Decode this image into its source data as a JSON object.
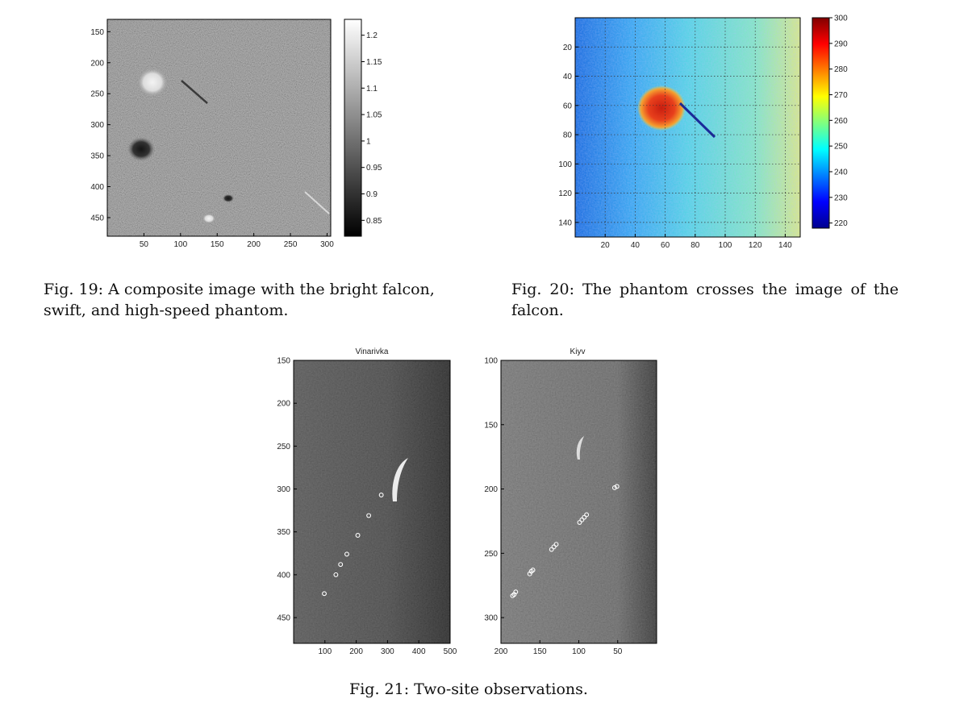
{
  "figures": [
    {
      "number": "19",
      "caption_prefix": "Fig. 19:",
      "caption_text": "A composite image with the bright falcon, swift, and high-speed phantom.",
      "image": {
        "title": "",
        "x_ticks": [
          "50",
          "100",
          "150",
          "200",
          "250",
          "300"
        ],
        "y_ticks": [
          "150",
          "200",
          "250",
          "300",
          "350",
          "400",
          "450"
        ],
        "colorbar_ticks": [
          "1.2",
          "1.15",
          "1.1",
          "1.05",
          "1",
          "0.95",
          "0.9",
          "0.85"
        ],
        "colormap": "gray"
      }
    },
    {
      "number": "20",
      "caption_prefix": "Fig. 20:",
      "caption_text": "The phantom crosses the image of the falcon.",
      "image": {
        "title": "",
        "x_ticks": [
          "20",
          "40",
          "60",
          "80",
          "100",
          "120",
          "140"
        ],
        "y_ticks": [
          "20",
          "40",
          "60",
          "80",
          "100",
          "120",
          "140"
        ],
        "colorbar_ticks": [
          "300",
          "290",
          "280",
          "270",
          "260",
          "250",
          "240",
          "230",
          "220"
        ],
        "colormap": "jet",
        "grid": true
      }
    },
    {
      "number": "21",
      "caption_prefix": "Fig. 21:",
      "caption_text": "Two-site observations.",
      "panels": [
        {
          "title": "Vinarivka",
          "x_ticks": [
            "100",
            "200",
            "300",
            "400",
            "500"
          ],
          "y_ticks": [
            "150",
            "200",
            "250",
            "300",
            "350",
            "400",
            "450"
          ]
        },
        {
          "title": "Kiyv",
          "x_ticks": [
            "200",
            "150",
            "100",
            "50"
          ],
          "y_ticks": [
            "100",
            "150",
            "200",
            "250",
            "300"
          ]
        }
      ]
    }
  ],
  "chart_data": [
    {
      "type": "heatmap",
      "title": "",
      "xlabel": "",
      "ylabel": "",
      "xlim": [
        0,
        305
      ],
      "ylim": [
        480,
        130
      ],
      "colorbar_range": [
        0.82,
        1.23
      ],
      "colormap": "gray"
    },
    {
      "type": "heatmap",
      "title": "",
      "xlabel": "",
      "ylabel": "",
      "xlim": [
        0,
        150
      ],
      "ylim": [
        150,
        0
      ],
      "colorbar_range": [
        218,
        300
      ],
      "colormap": "jet",
      "grid": true
    },
    {
      "type": "scatter",
      "title": "Vinarivka",
      "xlim": [
        0,
        500
      ],
      "ylim": [
        480,
        150
      ],
      "points": {
        "x": [
          98,
          135,
          150,
          170,
          205,
          240,
          280
        ],
        "y": [
          422,
          400,
          388,
          376,
          354,
          331,
          307
        ]
      }
    },
    {
      "type": "scatter",
      "title": "Kiyv",
      "xlim": [
        200,
        0
      ],
      "ylim": [
        320,
        100
      ],
      "points": {
        "x": [
          185,
          183,
          181,
          163,
          161,
          159,
          135,
          132,
          129,
          99,
          96,
          93,
          90,
          54,
          51
        ],
        "y": [
          283,
          282,
          280,
          266,
          264,
          263,
          247,
          245,
          243,
          226,
          224,
          222,
          220,
          199,
          198
        ]
      }
    }
  ]
}
